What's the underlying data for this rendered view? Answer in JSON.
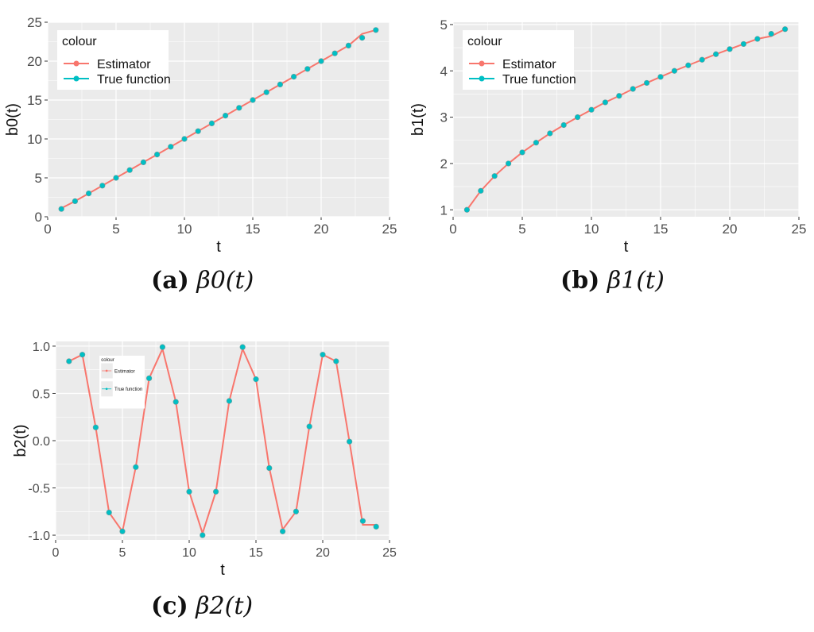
{
  "chart_data": [
    {
      "type": "line",
      "title": "",
      "caption_label": "(a)",
      "caption_math": "β0(t)",
      "xlabel": "t",
      "ylabel": "b0(t)",
      "xlim": [
        0,
        25
      ],
      "ylim": [
        0,
        25
      ],
      "xticks": [
        0,
        5,
        10,
        15,
        20,
        25
      ],
      "yticks": [
        0,
        5,
        10,
        15,
        20,
        25
      ],
      "legend": {
        "title": "colour",
        "placement": "top-left",
        "entries": [
          "Estimator",
          "True function"
        ]
      },
      "x": [
        1,
        2,
        3,
        4,
        5,
        6,
        7,
        8,
        9,
        10,
        11,
        12,
        13,
        14,
        15,
        16,
        17,
        18,
        19,
        20,
        21,
        22,
        23,
        24
      ],
      "series": [
        {
          "name": "Estimator",
          "color": "#F8766D",
          "values": [
            1.1,
            2.0,
            3.0,
            4.0,
            5.0,
            6.0,
            7.0,
            8.0,
            9.0,
            10.0,
            11.0,
            12.0,
            13.0,
            14.0,
            15.0,
            16.0,
            17.0,
            18.0,
            19.0,
            20.0,
            21.0,
            22.0,
            23.5,
            24.0
          ]
        },
        {
          "name": "True function",
          "color": "#00BFC4",
          "values": [
            1,
            2,
            3,
            4,
            5,
            6,
            7,
            8,
            9,
            10,
            11,
            12,
            13,
            14,
            15,
            16,
            17,
            18,
            19,
            20,
            21,
            22,
            23,
            24
          ]
        }
      ]
    },
    {
      "type": "line",
      "title": "",
      "caption_label": "(b)",
      "caption_math": "β1(t)",
      "xlabel": "t",
      "ylabel": "b1(t)",
      "xlim": [
        0,
        25
      ],
      "ylim": [
        0.85,
        5.05
      ],
      "xticks": [
        0,
        5,
        10,
        15,
        20,
        25
      ],
      "yticks": [
        1,
        2,
        3,
        4,
        5
      ],
      "legend": {
        "title": "colour",
        "placement": "top-left",
        "entries": [
          "Estimator",
          "True function"
        ]
      },
      "x": [
        1,
        2,
        3,
        4,
        5,
        6,
        7,
        8,
        9,
        10,
        11,
        12,
        13,
        14,
        15,
        16,
        17,
        18,
        19,
        20,
        21,
        22,
        23,
        24
      ],
      "series": [
        {
          "name": "Estimator",
          "color": "#F8766D",
          "values": [
            1.0,
            1.41,
            1.73,
            2.0,
            2.24,
            2.45,
            2.65,
            2.83,
            3.0,
            3.16,
            3.32,
            3.46,
            3.61,
            3.74,
            3.87,
            4.0,
            4.12,
            4.24,
            4.36,
            4.47,
            4.58,
            4.69,
            4.75,
            4.9
          ]
        },
        {
          "name": "True function",
          "color": "#00BFC4",
          "values": [
            1.0,
            1.41,
            1.73,
            2.0,
            2.24,
            2.45,
            2.65,
            2.83,
            3.0,
            3.16,
            3.32,
            3.46,
            3.61,
            3.74,
            3.87,
            4.0,
            4.12,
            4.24,
            4.36,
            4.47,
            4.58,
            4.69,
            4.8,
            4.9
          ]
        }
      ]
    },
    {
      "type": "line",
      "title": "",
      "caption_label": "(c)",
      "caption_math": "β2(t)",
      "xlabel": "t",
      "ylabel": "b2(t)",
      "xlim": [
        0,
        25
      ],
      "ylim": [
        -1.05,
        1.05
      ],
      "xticks": [
        0,
        5,
        10,
        15,
        20,
        25
      ],
      "yticks": [
        "-1.0",
        "-0.5",
        "0.0",
        "0.5",
        "1.0"
      ],
      "legend": {
        "title": "colour",
        "placement": "top-left",
        "entries": [
          "Estimator",
          "True function"
        ]
      },
      "x": [
        1,
        2,
        3,
        4,
        5,
        6,
        7,
        8,
        9,
        10,
        11,
        12,
        13,
        14,
        15,
        16,
        17,
        18,
        19,
        20,
        21,
        22,
        23,
        24
      ],
      "series": [
        {
          "name": "Estimator",
          "color": "#F8766D",
          "values": [
            0.84,
            0.91,
            0.14,
            -0.76,
            -0.96,
            -0.28,
            0.66,
            0.97,
            0.41,
            -0.54,
            -0.98,
            -0.54,
            0.42,
            0.97,
            0.65,
            -0.29,
            -0.94,
            -0.75,
            0.15,
            0.91,
            0.84,
            -0.01,
            -0.89,
            -0.89
          ]
        },
        {
          "name": "True function",
          "color": "#00BFC4",
          "values": [
            0.84,
            0.91,
            0.14,
            -0.76,
            -0.96,
            -0.28,
            0.66,
            0.99,
            0.41,
            -0.54,
            -1.0,
            -0.54,
            0.42,
            0.99,
            0.65,
            -0.29,
            -0.96,
            -0.75,
            0.15,
            0.91,
            0.84,
            -0.01,
            -0.85,
            -0.91
          ]
        }
      ]
    }
  ]
}
